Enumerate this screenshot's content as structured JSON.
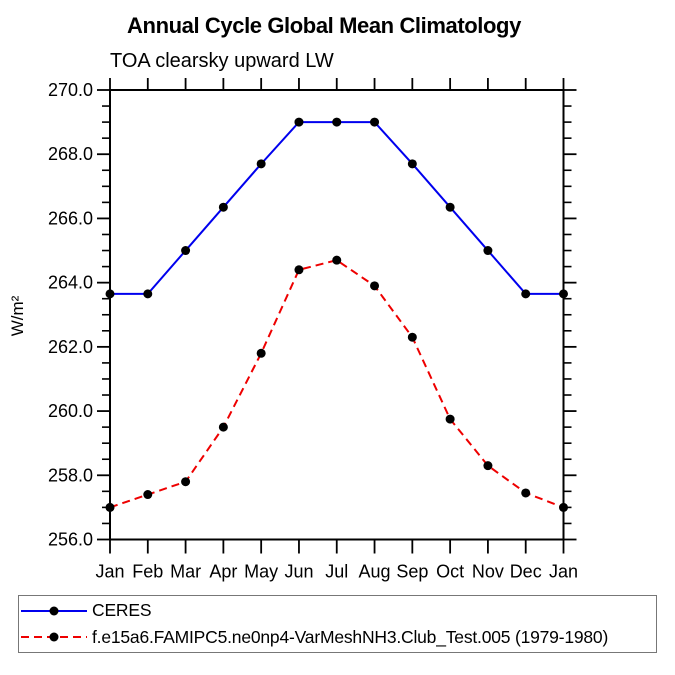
{
  "chart_data": {
    "type": "line",
    "title": "Annual Cycle Global Mean Climatology",
    "subtitle": "TOA clearsky upward LW",
    "ylabel": "W/m²",
    "xlabel": "",
    "x_categories": [
      "Jan",
      "Feb",
      "Mar",
      "Apr",
      "May",
      "Jun",
      "Jul",
      "Aug",
      "Sep",
      "Oct",
      "Nov",
      "Dec",
      "Jan"
    ],
    "ylim": [
      256.0,
      270.0
    ],
    "ytick_major_step": 2.0,
    "ytick_minor_step": 0.5,
    "ytick_labels": [
      "256.0",
      "258.0",
      "260.0",
      "262.0",
      "264.0",
      "266.0",
      "268.0",
      "270.0"
    ],
    "grid": false,
    "legend_position": "bottom box, below plot",
    "axis_color": "#000000",
    "series": [
      {
        "name": "CERES",
        "color": "#0000ee",
        "style": "solid",
        "marker": "filled-circle",
        "marker_color": "#000000",
        "values": [
          263.65,
          263.65,
          265.0,
          266.35,
          267.7,
          269.0,
          269.0,
          269.0,
          267.7,
          266.35,
          265.0,
          263.65,
          263.65
        ]
      },
      {
        "name": "f.e15a6.FAMIPC5.ne0np4-VarMeshNH3.Club_Test.005 (1979-1980)",
        "color": "#ee0000",
        "style": "dashed",
        "marker": "filled-circle",
        "marker_color": "#000000",
        "values": [
          257.0,
          257.4,
          257.8,
          259.5,
          261.8,
          264.4,
          264.7,
          263.9,
          262.3,
          259.75,
          258.3,
          257.45,
          257.0
        ]
      }
    ]
  }
}
